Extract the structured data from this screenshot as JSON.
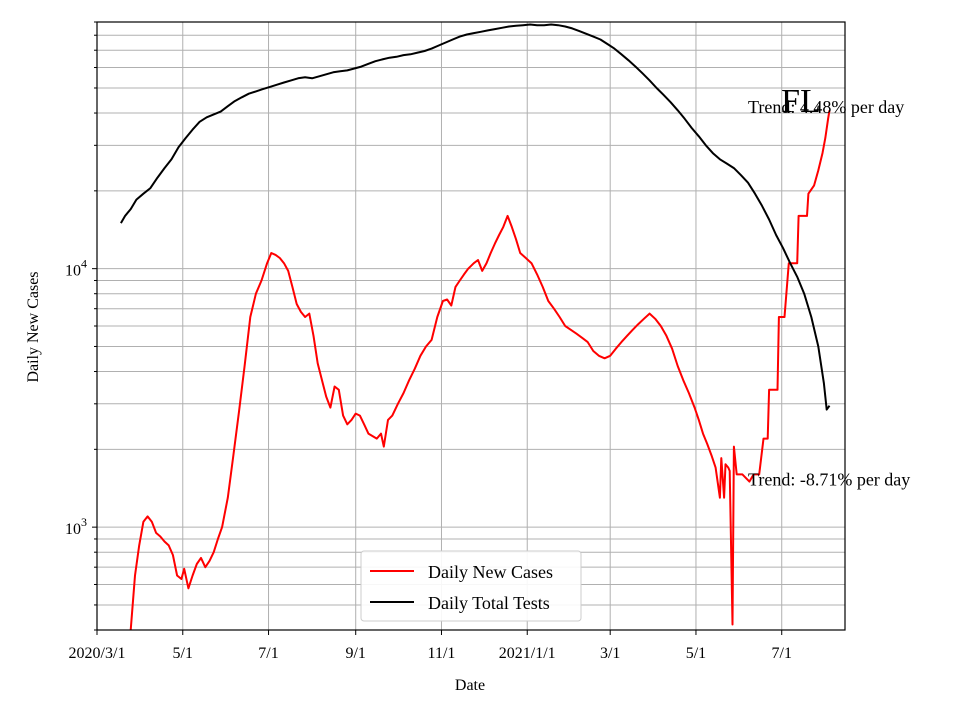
{
  "chart_data": {
    "type": "line",
    "title": "",
    "state_label": "FL",
    "xlabel": "Date",
    "ylabel": "Daily New Cases",
    "y_scale": "log",
    "xlim": [
      "2020-03-01",
      "2021-08-15"
    ],
    "ylim": [
      400,
      90000
    ],
    "grid": true,
    "grid_minor": true,
    "legend_position": "lower-center",
    "x_ticks": [
      {
        "date": "2020-03-01",
        "label": "2020/3/1"
      },
      {
        "date": "2020-05-01",
        "label": "5/1"
      },
      {
        "date": "2020-07-01",
        "label": "7/1"
      },
      {
        "date": "2020-09-01",
        "label": "9/1"
      },
      {
        "date": "2020-11-01",
        "label": "11/1"
      },
      {
        "date": "2021-01-01",
        "label": "2021/1/1"
      },
      {
        "date": "2021-03-01",
        "label": "3/1"
      },
      {
        "date": "2021-05-01",
        "label": "5/1"
      },
      {
        "date": "2021-07-01",
        "label": "7/1"
      }
    ],
    "y_ticks": [
      {
        "value": 1000,
        "base": "10",
        "exp": "3"
      },
      {
        "value": 10000,
        "base": "10",
        "exp": "4"
      }
    ],
    "annotations": [
      {
        "text": "Trend: 4.48% per day",
        "date": "2021-06-07",
        "value": 40000
      },
      {
        "text": "Trend: -8.71% per day",
        "date": "2021-06-07",
        "value": 1450
      }
    ],
    "series": [
      {
        "name": "Daily New Cases",
        "color": "#ff0000",
        "points": [
          [
            "2020-03-25",
            400
          ],
          [
            "2020-03-28",
            650
          ],
          [
            "2020-03-31",
            850
          ],
          [
            "2020-04-03",
            1050
          ],
          [
            "2020-04-06",
            1100
          ],
          [
            "2020-04-09",
            1050
          ],
          [
            "2020-04-12",
            950
          ],
          [
            "2020-04-15",
            920
          ],
          [
            "2020-04-18",
            880
          ],
          [
            "2020-04-21",
            850
          ],
          [
            "2020-04-24",
            780
          ],
          [
            "2020-04-27",
            650
          ],
          [
            "2020-04-30",
            630
          ],
          [
            "2020-05-02",
            690
          ],
          [
            "2020-05-05",
            580
          ],
          [
            "2020-05-08",
            650
          ],
          [
            "2020-05-11",
            720
          ],
          [
            "2020-05-14",
            760
          ],
          [
            "2020-05-17",
            700
          ],
          [
            "2020-05-20",
            740
          ],
          [
            "2020-05-23",
            800
          ],
          [
            "2020-05-26",
            900
          ],
          [
            "2020-05-29",
            1000
          ],
          [
            "2020-06-02",
            1300
          ],
          [
            "2020-06-06",
            1900
          ],
          [
            "2020-06-10",
            2800
          ],
          [
            "2020-06-14",
            4200
          ],
          [
            "2020-06-18",
            6500
          ],
          [
            "2020-06-22",
            8000
          ],
          [
            "2020-06-26",
            9000
          ],
          [
            "2020-06-30",
            10500
          ],
          [
            "2020-07-03",
            11500
          ],
          [
            "2020-07-06",
            11300
          ],
          [
            "2020-07-09",
            11000
          ],
          [
            "2020-07-12",
            10500
          ],
          [
            "2020-07-15",
            9800
          ],
          [
            "2020-07-18",
            8500
          ],
          [
            "2020-07-21",
            7300
          ],
          [
            "2020-07-24",
            6800
          ],
          [
            "2020-07-27",
            6500
          ],
          [
            "2020-07-30",
            6700
          ],
          [
            "2020-08-02",
            5500
          ],
          [
            "2020-08-05",
            4300
          ],
          [
            "2020-08-08",
            3700
          ],
          [
            "2020-08-11",
            3200
          ],
          [
            "2020-08-14",
            2900
          ],
          [
            "2020-08-17",
            3500
          ],
          [
            "2020-08-20",
            3400
          ],
          [
            "2020-08-23",
            2700
          ],
          [
            "2020-08-26",
            2500
          ],
          [
            "2020-08-29",
            2600
          ],
          [
            "2020-09-01",
            2750
          ],
          [
            "2020-09-04",
            2700
          ],
          [
            "2020-09-07",
            2500
          ],
          [
            "2020-09-10",
            2300
          ],
          [
            "2020-09-13",
            2250
          ],
          [
            "2020-09-16",
            2200
          ],
          [
            "2020-09-19",
            2300
          ],
          [
            "2020-09-21",
            2050
          ],
          [
            "2020-09-24",
            2600
          ],
          [
            "2020-09-27",
            2700
          ],
          [
            "2020-10-01",
            3000
          ],
          [
            "2020-10-05",
            3300
          ],
          [
            "2020-10-09",
            3700
          ],
          [
            "2020-10-13",
            4100
          ],
          [
            "2020-10-17",
            4600
          ],
          [
            "2020-10-21",
            5000
          ],
          [
            "2020-10-25",
            5300
          ],
          [
            "2020-10-29",
            6500
          ],
          [
            "2020-11-02",
            7500
          ],
          [
            "2020-11-05",
            7600
          ],
          [
            "2020-11-08",
            7200
          ],
          [
            "2020-11-11",
            8500
          ],
          [
            "2020-11-14",
            9000
          ],
          [
            "2020-11-17",
            9500
          ],
          [
            "2020-11-20",
            10000
          ],
          [
            "2020-11-24",
            10500
          ],
          [
            "2020-11-27",
            10800
          ],
          [
            "2020-11-30",
            9800
          ],
          [
            "2020-12-03",
            10500
          ],
          [
            "2020-12-06",
            11500
          ],
          [
            "2020-12-09",
            12500
          ],
          [
            "2020-12-12",
            13500
          ],
          [
            "2020-12-15",
            14500
          ],
          [
            "2020-12-18",
            16000
          ],
          [
            "2020-12-21",
            14500
          ],
          [
            "2020-12-24",
            13000
          ],
          [
            "2020-12-27",
            11500
          ],
          [
            "2020-12-31",
            11000
          ],
          [
            "2021-01-04",
            10500
          ],
          [
            "2021-01-08",
            9500
          ],
          [
            "2021-01-12",
            8500
          ],
          [
            "2021-01-16",
            7500
          ],
          [
            "2021-01-20",
            7000
          ],
          [
            "2021-01-24",
            6500
          ],
          [
            "2021-01-28",
            6000
          ],
          [
            "2021-02-01",
            5800
          ],
          [
            "2021-02-05",
            5600
          ],
          [
            "2021-02-09",
            5400
          ],
          [
            "2021-02-13",
            5200
          ],
          [
            "2021-02-17",
            4800
          ],
          [
            "2021-02-21",
            4600
          ],
          [
            "2021-02-25",
            4500
          ],
          [
            "2021-03-01",
            4600
          ],
          [
            "2021-03-05",
            4900
          ],
          [
            "2021-03-09",
            5200
          ],
          [
            "2021-03-13",
            5500
          ],
          [
            "2021-03-17",
            5800
          ],
          [
            "2021-03-21",
            6100
          ],
          [
            "2021-03-25",
            6400
          ],
          [
            "2021-03-29",
            6700
          ],
          [
            "2021-04-02",
            6400
          ],
          [
            "2021-04-06",
            6000
          ],
          [
            "2021-04-10",
            5500
          ],
          [
            "2021-04-14",
            4900
          ],
          [
            "2021-04-18",
            4200
          ],
          [
            "2021-04-22",
            3700
          ],
          [
            "2021-04-26",
            3300
          ],
          [
            "2021-04-30",
            2900
          ],
          [
            "2021-05-03",
            2600
          ],
          [
            "2021-05-06",
            2300
          ],
          [
            "2021-05-09",
            2100
          ],
          [
            "2021-05-12",
            1900
          ],
          [
            "2021-05-15",
            1700
          ],
          [
            "2021-05-18",
            1300
          ],
          [
            "2021-05-19",
            1850
          ],
          [
            "2021-05-21",
            1300
          ],
          [
            "2021-05-22",
            1750
          ],
          [
            "2021-05-24",
            1700
          ],
          [
            "2021-05-25",
            1650
          ],
          [
            "2021-05-27",
            420
          ],
          [
            "2021-05-28",
            2050
          ],
          [
            "2021-05-30",
            1600
          ],
          [
            "2021-06-03",
            1600
          ],
          [
            "2021-06-08",
            1500
          ],
          [
            "2021-06-11",
            1600
          ],
          [
            "2021-06-15",
            1600
          ],
          [
            "2021-06-18",
            2200
          ],
          [
            "2021-06-21",
            2200
          ],
          [
            "2021-06-22",
            3400
          ],
          [
            "2021-06-25",
            3400
          ],
          [
            "2021-06-28",
            3400
          ],
          [
            "2021-06-29",
            6500
          ],
          [
            "2021-07-03",
            6500
          ],
          [
            "2021-07-06",
            10500
          ],
          [
            "2021-07-12",
            10500
          ],
          [
            "2021-07-13",
            16000
          ],
          [
            "2021-07-19",
            16000
          ],
          [
            "2021-07-20",
            19500
          ],
          [
            "2021-07-24",
            21000
          ],
          [
            "2021-07-27",
            24000
          ],
          [
            "2021-07-30",
            28000
          ],
          [
            "2021-08-01",
            32000
          ],
          [
            "2021-08-03",
            38000
          ],
          [
            "2021-08-04",
            41000
          ]
        ]
      },
      {
        "name": "Daily Total Tests",
        "color": "#000000",
        "points": [
          [
            "2020-03-18",
            15000
          ],
          [
            "2020-03-21",
            16000
          ],
          [
            "2020-03-25",
            17000
          ],
          [
            "2020-03-29",
            18500
          ],
          [
            "2020-04-03",
            19500
          ],
          [
            "2020-04-08",
            20500
          ],
          [
            "2020-04-13",
            22500
          ],
          [
            "2020-04-18",
            24500
          ],
          [
            "2020-04-23",
            26500
          ],
          [
            "2020-04-28",
            29500
          ],
          [
            "2020-05-03",
            32000
          ],
          [
            "2020-05-08",
            34500
          ],
          [
            "2020-05-13",
            37000
          ],
          [
            "2020-05-18",
            38500
          ],
          [
            "2020-05-23",
            39500
          ],
          [
            "2020-05-28",
            40500
          ],
          [
            "2020-06-02",
            42500
          ],
          [
            "2020-06-07",
            44500
          ],
          [
            "2020-06-12",
            46000
          ],
          [
            "2020-06-17",
            47500
          ],
          [
            "2020-06-22",
            48500
          ],
          [
            "2020-06-27",
            49500
          ],
          [
            "2020-07-02",
            50500
          ],
          [
            "2020-07-07",
            51500
          ],
          [
            "2020-07-12",
            52500
          ],
          [
            "2020-07-17",
            53500
          ],
          [
            "2020-07-22",
            54500
          ],
          [
            "2020-07-27",
            55000
          ],
          [
            "2020-08-01",
            54500
          ],
          [
            "2020-08-06",
            55500
          ],
          [
            "2020-08-11",
            56500
          ],
          [
            "2020-08-16",
            57500
          ],
          [
            "2020-08-21",
            58000
          ],
          [
            "2020-08-26",
            58500
          ],
          [
            "2020-08-31",
            59500
          ],
          [
            "2020-09-05",
            60500
          ],
          [
            "2020-09-10",
            62000
          ],
          [
            "2020-09-15",
            63500
          ],
          [
            "2020-09-20",
            64500
          ],
          [
            "2020-09-25",
            65500
          ],
          [
            "2020-09-30",
            66000
          ],
          [
            "2020-10-05",
            67000
          ],
          [
            "2020-10-10",
            67500
          ],
          [
            "2020-10-15",
            68500
          ],
          [
            "2020-10-20",
            69500
          ],
          [
            "2020-10-25",
            71000
          ],
          [
            "2020-10-30",
            73000
          ],
          [
            "2020-11-04",
            75000
          ],
          [
            "2020-11-09",
            77000
          ],
          [
            "2020-11-14",
            79000
          ],
          [
            "2020-11-19",
            80500
          ],
          [
            "2020-11-24",
            81500
          ],
          [
            "2020-11-29",
            82500
          ],
          [
            "2020-12-04",
            83500
          ],
          [
            "2020-12-09",
            84500
          ],
          [
            "2020-12-14",
            85500
          ],
          [
            "2020-12-19",
            86500
          ],
          [
            "2020-12-24",
            87000
          ],
          [
            "2020-12-29",
            87500
          ],
          [
            "2021-01-03",
            88000
          ],
          [
            "2021-01-08",
            87500
          ],
          [
            "2021-01-13",
            87500
          ],
          [
            "2021-01-18",
            88000
          ],
          [
            "2021-01-23",
            87500
          ],
          [
            "2021-01-28",
            86500
          ],
          [
            "2021-02-02",
            85000
          ],
          [
            "2021-02-07",
            83000
          ],
          [
            "2021-02-12",
            81000
          ],
          [
            "2021-02-17",
            79000
          ],
          [
            "2021-02-22",
            77000
          ],
          [
            "2021-02-27",
            74000
          ],
          [
            "2021-03-04",
            71000
          ],
          [
            "2021-03-09",
            67500
          ],
          [
            "2021-03-14",
            64000
          ],
          [
            "2021-03-19",
            60500
          ],
          [
            "2021-03-24",
            57000
          ],
          [
            "2021-03-29",
            53500
          ],
          [
            "2021-04-03",
            50000
          ],
          [
            "2021-04-08",
            47000
          ],
          [
            "2021-04-13",
            44000
          ],
          [
            "2021-04-18",
            41000
          ],
          [
            "2021-04-23",
            38000
          ],
          [
            "2021-04-28",
            35000
          ],
          [
            "2021-05-03",
            32500
          ],
          [
            "2021-05-08",
            30000
          ],
          [
            "2021-05-13",
            28000
          ],
          [
            "2021-05-18",
            26500
          ],
          [
            "2021-05-23",
            25500
          ],
          [
            "2021-05-28",
            24500
          ],
          [
            "2021-06-02",
            23000
          ],
          [
            "2021-06-07",
            21500
          ],
          [
            "2021-06-12",
            19500
          ],
          [
            "2021-06-17",
            17500
          ],
          [
            "2021-06-22",
            15500
          ],
          [
            "2021-06-27",
            13500
          ],
          [
            "2021-07-02",
            12000
          ],
          [
            "2021-07-07",
            10500
          ],
          [
            "2021-07-12",
            9300
          ],
          [
            "2021-07-17",
            8000
          ],
          [
            "2021-07-22",
            6500
          ],
          [
            "2021-07-27",
            5000
          ],
          [
            "2021-07-31",
            3600
          ],
          [
            "2021-08-02",
            2850
          ],
          [
            "2021-08-04",
            2950
          ]
        ]
      }
    ]
  }
}
